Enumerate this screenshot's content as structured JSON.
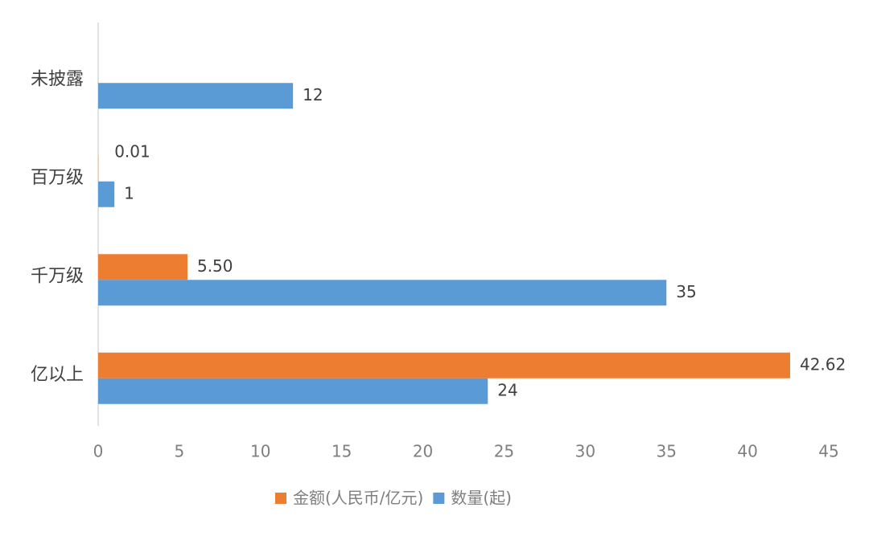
{
  "chart_data": {
    "type": "hbar",
    "categories": [
      "未披露",
      "百万级",
      "千万级",
      "亿以上"
    ],
    "series": [
      {
        "name": "金额(人民币/亿元)",
        "color": "#ed7d31",
        "values": [
          null,
          0.01,
          5.5,
          42.62
        ],
        "value_labels": [
          null,
          "0.01",
          "5.50",
          "42.62"
        ]
      },
      {
        "name": "数量(起)",
        "color": "#5b9bd5",
        "values": [
          12,
          1,
          35,
          24
        ]
      }
    ],
    "xlim": [
      0,
      45
    ],
    "xticks": [
      0,
      5,
      10,
      15,
      20,
      25,
      30,
      35,
      40,
      45
    ],
    "grid": false,
    "legend": "bottom"
  }
}
